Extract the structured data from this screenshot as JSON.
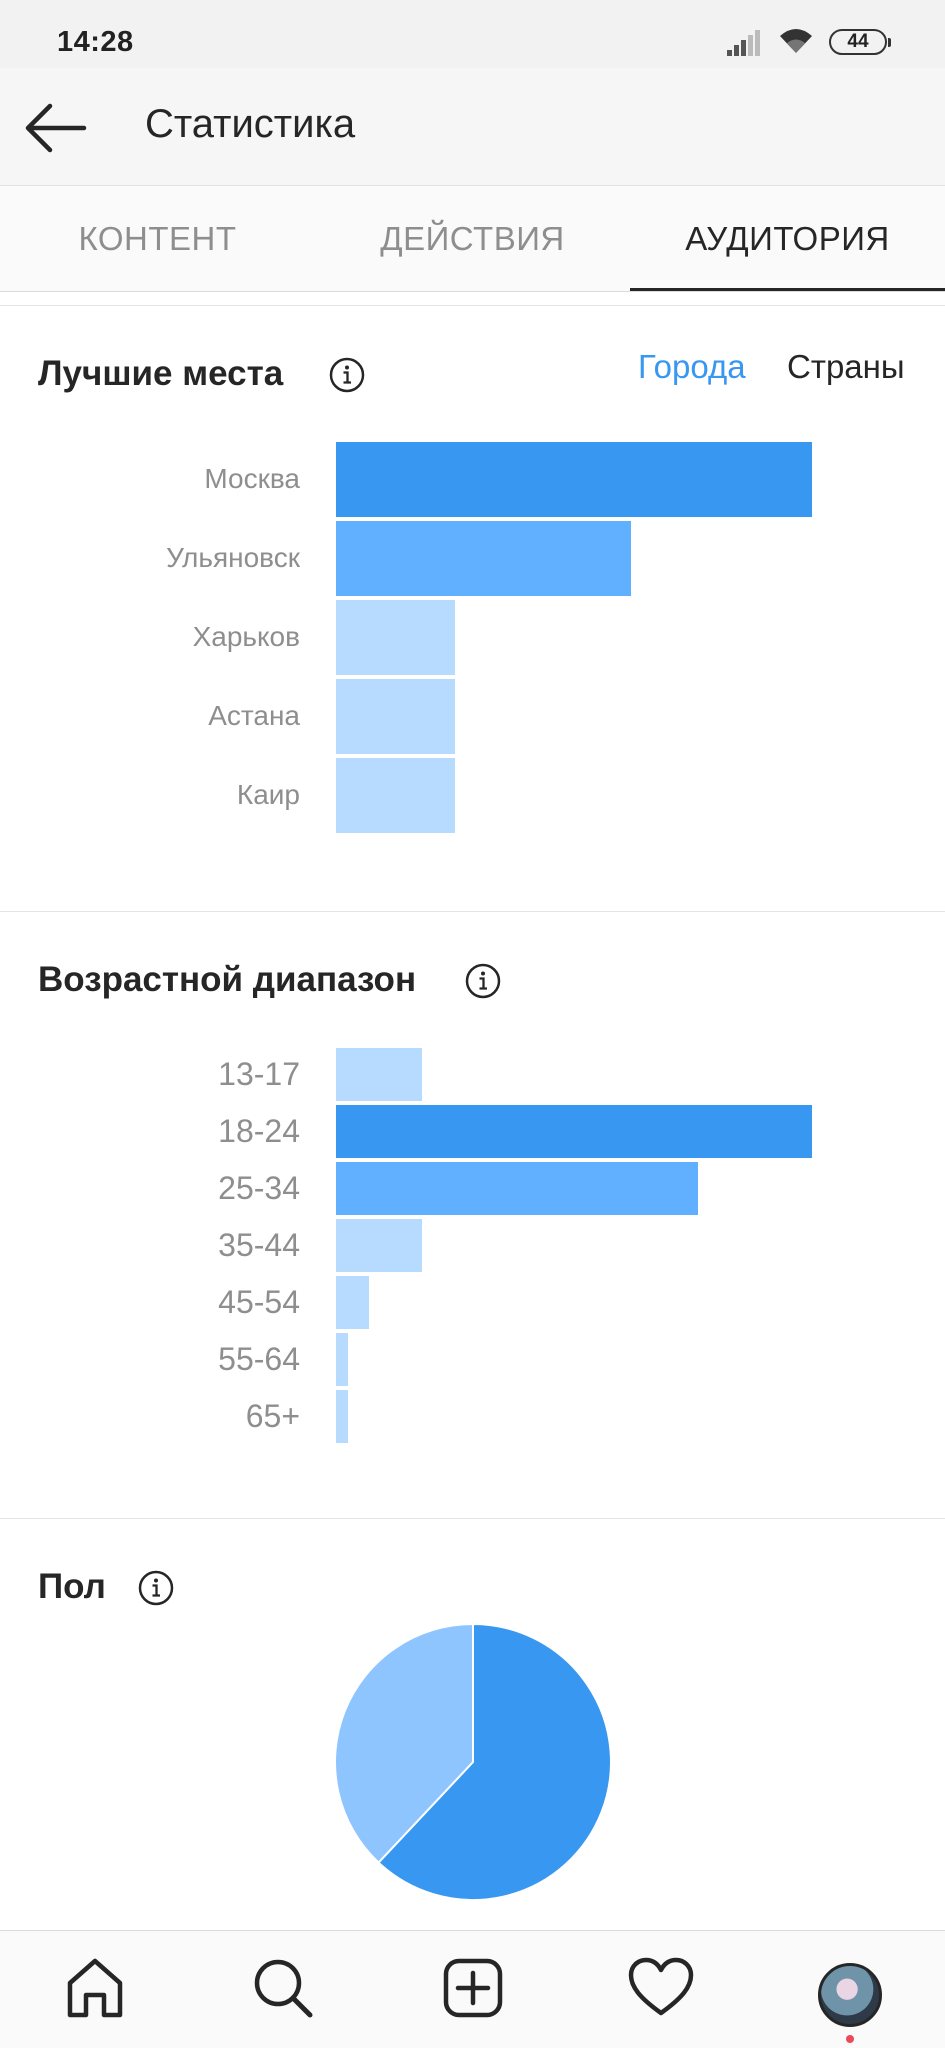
{
  "status_bar": {
    "time": "14:28",
    "battery": "44"
  },
  "header": {
    "title": "Статистика"
  },
  "tabs": [
    {
      "label": "КОНТЕНТ",
      "active": false
    },
    {
      "label": "ДЕЙСТВИЯ",
      "active": false
    },
    {
      "label": "АУДИТОРИЯ",
      "active": true
    }
  ],
  "places": {
    "title": "Лучшие места",
    "toggle": {
      "cities": "Города",
      "countries": "Страны",
      "selected": "cities"
    }
  },
  "age": {
    "title": "Возрастной диапазон"
  },
  "gender": {
    "title": "Пол"
  },
  "colors": {
    "accent": "#3897f0",
    "bar_primary": "#3897f0",
    "bar_secondary": "#60b0ff",
    "bar_light": "#b7daff",
    "pie_dark": "#3897f0",
    "pie_light": "#8ec5ff"
  },
  "chart_data": [
    {
      "type": "bar",
      "orientation": "horizontal",
      "categories": [
        "Москва",
        "Ульяновск",
        "Харьков",
        "Астана",
        "Каир"
      ],
      "values": [
        100,
        62,
        25,
        25,
        25
      ],
      "xlim": [
        0,
        100
      ]
    },
    {
      "type": "bar",
      "orientation": "horizontal",
      "categories": [
        "13-17",
        "18-24",
        "25-34",
        "35-44",
        "45-54",
        "55-64",
        "65+"
      ],
      "values": [
        18,
        100,
        76,
        18,
        7,
        2.5,
        2.5
      ],
      "xlim": [
        0,
        100
      ]
    },
    {
      "type": "pie",
      "values": [
        62,
        38
      ]
    }
  ],
  "nav": [
    "home-icon",
    "search-icon",
    "add-icon",
    "heart-icon",
    "profile-avatar"
  ]
}
